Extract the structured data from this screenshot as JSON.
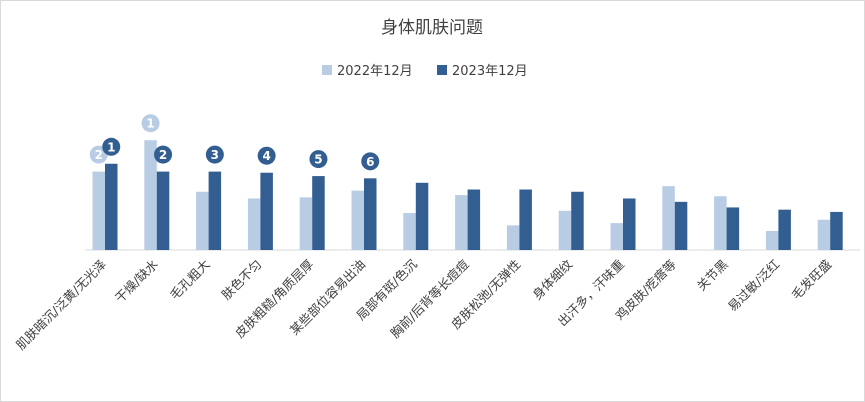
{
  "chart_data": {
    "type": "bar",
    "title": "身体肌肤问题",
    "legend_position": "top",
    "grid": false,
    "ylim": [
      0,
      10
    ],
    "categories": [
      "肌肤暗沉/泛黄/无光泽",
      "干燥/缺水",
      "毛孔粗大",
      "肤色不匀",
      "皮肤粗糙/角质层厚",
      "某些部位容易出油",
      "局部有斑/色沉",
      "胸前/后背等长痘痘",
      "皮肤松弛/无弹性",
      "身体细纹",
      "出汗多，汗味重",
      "鸡皮肤/疙瘩等",
      "关节黑",
      "易过敏/泛红",
      "毛发旺盛"
    ],
    "series": [
      {
        "name": "2022年12月",
        "color": "#b8cce4",
        "values": [
          7.0,
          9.8,
          5.2,
          4.6,
          4.7,
          5.3,
          3.3,
          4.9,
          2.2,
          3.5,
          2.4,
          5.7,
          4.8,
          1.7,
          2.7
        ],
        "ranks": [
          2,
          1,
          null,
          null,
          null,
          null,
          null,
          null,
          null,
          null,
          null,
          null,
          null,
          null,
          null
        ]
      },
      {
        "name": "2023年12月",
        "color": "#335e91",
        "values": [
          7.7,
          7.0,
          7.0,
          6.9,
          6.6,
          6.4,
          6.0,
          5.4,
          5.4,
          5.2,
          4.6,
          4.3,
          3.8,
          3.6,
          3.4
        ],
        "ranks": [
          1,
          2,
          3,
          4,
          5,
          6,
          null,
          null,
          null,
          null,
          null,
          null,
          null,
          null,
          null
        ]
      }
    ]
  }
}
